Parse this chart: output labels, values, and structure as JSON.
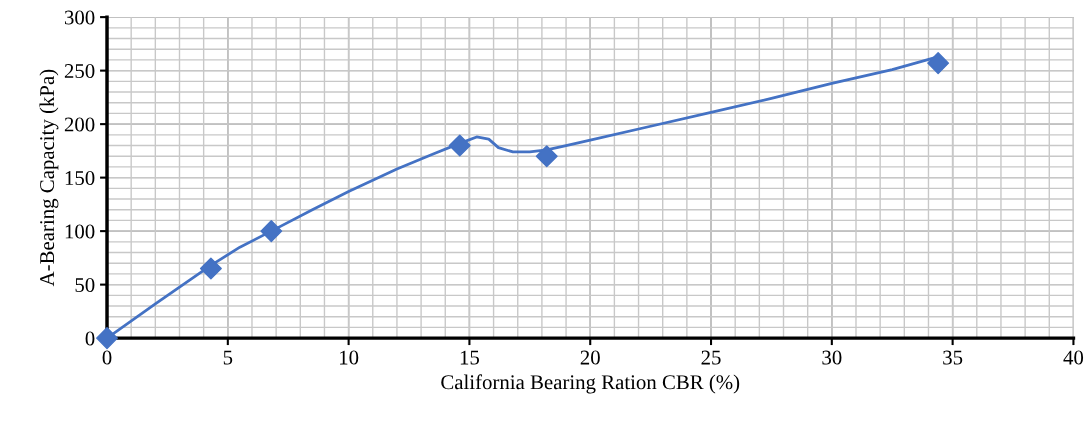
{
  "chart_data": {
    "type": "scatter",
    "xlabel": "California Bearing Ration CBR (%)",
    "ylabel": "A-Bearing Capacity (kPa)",
    "xlim": [
      0,
      40
    ],
    "ylim": [
      0,
      300
    ],
    "xticks": [
      0,
      5,
      10,
      15,
      20,
      25,
      30,
      35,
      40
    ],
    "yticks": [
      0,
      50,
      100,
      150,
      200,
      250,
      300
    ],
    "grid": true,
    "legend": false,
    "series": [
      {
        "color": "#4472c4",
        "marker": "diamond",
        "x": [
          0,
          4.3,
          6.8,
          14.6,
          18.2,
          34.4
        ],
        "values": [
          0,
          65,
          100,
          180,
          170,
          257
        ]
      },
      {
        "type": "line",
        "color": "#4472c4",
        "marker": "none",
        "line_style": "solid",
        "x": [
          0,
          2,
          4.3,
          5.5,
          6.8,
          8.5,
          10,
          12,
          13.5,
          14.6,
          15.3,
          15.8,
          16.2,
          16.8,
          17.5,
          18.2,
          19,
          20,
          22.5,
          25,
          27.5,
          30,
          32.5,
          34.4
        ],
        "values": [
          0,
          32,
          68,
          85,
          100,
          120,
          137,
          158,
          172,
          182,
          188,
          186,
          178,
          174,
          174,
          176,
          180,
          185,
          198,
          211,
          224,
          238,
          251,
          263
        ]
      }
    ]
  }
}
